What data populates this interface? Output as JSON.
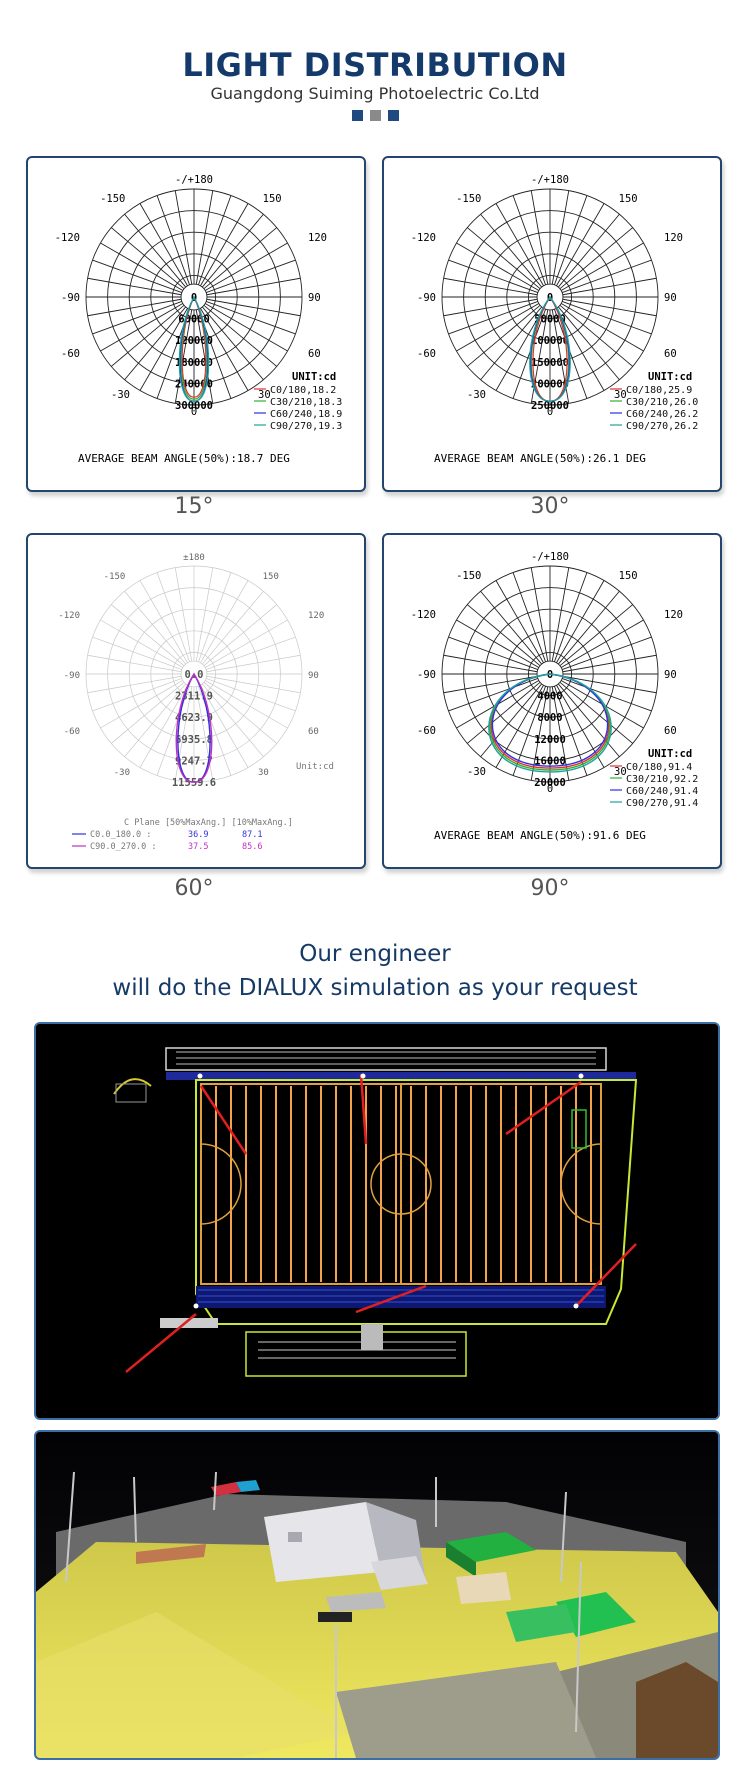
{
  "header": {
    "title": "LIGHT DISTRIBUTION",
    "subtitle": "Guangdong Suiming Photoelectric Co.Ltd",
    "colors": [
      "#1e4a80",
      "#8a8a8a",
      "#1e4a80"
    ]
  },
  "charts": [
    {
      "angle_label": "15°",
      "angle_ticks": [
        "-/+180",
        "-150",
        "150",
        "-120",
        "120",
        "-90",
        "90",
        "-60",
        "60",
        "-30",
        "30",
        "0"
      ],
      "radial_values": [
        "0",
        "60000",
        "120000",
        "180000",
        "240000",
        "300000"
      ],
      "unit": "UNIT:cd",
      "legend": [
        "C0/180,18.2",
        "C30/210,18.3",
        "C60/240,18.9",
        "C90/270,19.3"
      ],
      "footer": "AVERAGE BEAM ANGLE(50%):18.7 DEG"
    },
    {
      "angle_label": "30°",
      "angle_ticks": [
        "-/+180",
        "-150",
        "150",
        "-120",
        "120",
        "-90",
        "90",
        "-60",
        "60",
        "-30",
        "30",
        "0"
      ],
      "radial_values": [
        "0",
        "50000",
        "100000",
        "150000",
        "200000",
        "250000"
      ],
      "unit": "UNIT:cd",
      "legend": [
        "C0/180,25.9",
        "C30/210,26.0",
        "C60/240,26.2",
        "C90/270,26.2"
      ],
      "footer": "AVERAGE BEAM ANGLE(50%):26.1 DEG"
    },
    {
      "angle_label": "60°",
      "angle_ticks": [
        "±180",
        "-150",
        "150",
        "-120",
        "120",
        "-90",
        "90",
        "-60",
        "60",
        "-30",
        "30"
      ],
      "radial_values": [
        "0.0",
        "2311.9",
        "4623.9",
        "6935.8",
        "9247.7",
        "11559.6"
      ],
      "unit": "Unit:cd",
      "table_header": "C Plane   [50%MaxAng.] [10%MaxAng.]",
      "rows": [
        {
          "plane": "C0.0_180.0 :",
          "half": "36.9",
          "tenth": "87.1"
        },
        {
          "plane": "C90.0_270.0 :",
          "half": "37.5",
          "tenth": "85.6"
        }
      ]
    },
    {
      "angle_label": "90°",
      "angle_ticks": [
        "-/+180",
        "-150",
        "150",
        "-120",
        "120",
        "-90",
        "90",
        "-60",
        "60",
        "-30",
        "30",
        "0"
      ],
      "radial_values": [
        "0",
        "4000",
        "8000",
        "12000",
        "16000",
        "20000"
      ],
      "unit": "UNIT:cd",
      "legend": [
        "C0/180,91.4",
        "C30/210,92.2",
        "C60/240,91.4",
        "C90/270,91.4"
      ],
      "footer": "AVERAGE BEAM ANGLE(50%):91.6 DEG"
    }
  ],
  "engineer": {
    "line1": "Our engineer",
    "line2": "will do the DIALUX simulation as your request"
  },
  "legend_colors": [
    "#e03030",
    "#30b030",
    "#3030e0",
    "#20a0a0"
  ]
}
